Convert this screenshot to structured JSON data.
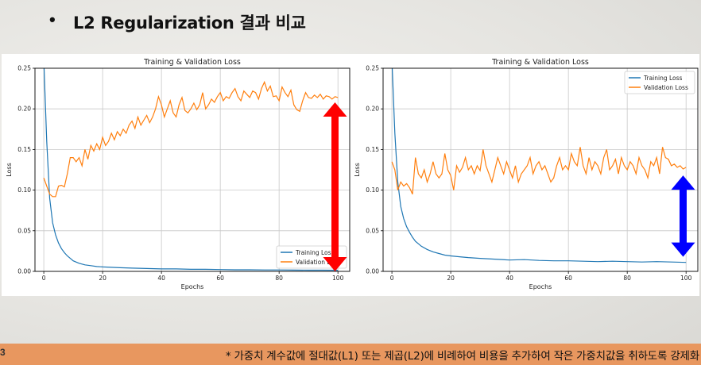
{
  "slide": {
    "bullet": "•",
    "title": "L2 Regularization 결과 비교",
    "footer_number": "3",
    "footer_note": "* 가중치 계수값에 절대값(L1) 또는 제곱(L2)에 비례하여 비용을 추가하여 작은 가중치값을 취하도록 강제화"
  },
  "colors": {
    "train": "#1f77b4",
    "val": "#ff7f0e",
    "arrow_left": "#ff0000",
    "arrow_right": "#0000ff",
    "footer_bg": "#e8975f"
  },
  "chart_data": [
    {
      "type": "line",
      "title": "Training & Validation Loss",
      "xlabel": "Epochs",
      "ylabel": "Loss",
      "xlim": [
        -3,
        104
      ],
      "ylim": [
        0,
        0.25
      ],
      "xticks": [
        "0",
        "20",
        "40",
        "60",
        "80",
        "100"
      ],
      "yticks": [
        "0.00",
        "0.05",
        "0.10",
        "0.15",
        "0.20",
        "0.25"
      ],
      "grid": true,
      "legend": "bottom-right",
      "arrow": {
        "color": "arrow_left",
        "y_top": 0.208,
        "y_bottom": 0.0,
        "x": 99
      },
      "series": [
        {
          "name": "Training Loss",
          "color": "train",
          "points": [
            [
              0,
              0.26
            ],
            [
              1,
              0.16
            ],
            [
              2,
              0.09
            ],
            [
              3,
              0.06
            ],
            [
              4,
              0.045
            ],
            [
              5,
              0.035
            ],
            [
              6,
              0.028
            ],
            [
              7,
              0.023
            ],
            [
              8,
              0.019
            ],
            [
              9,
              0.016
            ],
            [
              10,
              0.013
            ],
            [
              12,
              0.01
            ],
            [
              14,
              0.008
            ],
            [
              16,
              0.007
            ],
            [
              18,
              0.006
            ],
            [
              20,
              0.0055
            ],
            [
              23,
              0.005
            ],
            [
              26,
              0.0045
            ],
            [
              30,
              0.004
            ],
            [
              35,
              0.0035
            ],
            [
              40,
              0.003
            ],
            [
              45,
              0.003
            ],
            [
              50,
              0.0025
            ],
            [
              55,
              0.0025
            ],
            [
              60,
              0.0022
            ],
            [
              65,
              0.002
            ],
            [
              70,
              0.002
            ],
            [
              75,
              0.0018
            ],
            [
              80,
              0.0018
            ],
            [
              85,
              0.0016
            ],
            [
              90,
              0.0015
            ],
            [
              95,
              0.0015
            ],
            [
              100,
              0.0014
            ]
          ]
        },
        {
          "name": "Validation Loss",
          "color": "val",
          "points": [
            [
              0,
              0.115
            ],
            [
              1,
              0.105
            ],
            [
              2,
              0.095
            ],
            [
              3,
              0.092
            ],
            [
              4,
              0.092
            ],
            [
              5,
              0.105
            ],
            [
              6,
              0.106
            ],
            [
              7,
              0.104
            ],
            [
              8,
              0.12
            ],
            [
              9,
              0.14
            ],
            [
              10,
              0.14
            ],
            [
              11,
              0.135
            ],
            [
              12,
              0.14
            ],
            [
              13,
              0.13
            ],
            [
              14,
              0.15
            ],
            [
              15,
              0.138
            ],
            [
              16,
              0.155
            ],
            [
              17,
              0.148
            ],
            [
              18,
              0.157
            ],
            [
              19,
              0.15
            ],
            [
              20,
              0.165
            ],
            [
              21,
              0.155
            ],
            [
              22,
              0.16
            ],
            [
              23,
              0.17
            ],
            [
              24,
              0.162
            ],
            [
              25,
              0.172
            ],
            [
              26,
              0.167
            ],
            [
              27,
              0.175
            ],
            [
              28,
              0.17
            ],
            [
              29,
              0.18
            ],
            [
              30,
              0.185
            ],
            [
              31,
              0.176
            ],
            [
              32,
              0.19
            ],
            [
              33,
              0.18
            ],
            [
              34,
              0.186
            ],
            [
              35,
              0.192
            ],
            [
              36,
              0.183
            ],
            [
              37,
              0.19
            ],
            [
              38,
              0.2
            ],
            [
              39,
              0.215
            ],
            [
              40,
              0.205
            ],
            [
              41,
              0.19
            ],
            [
              42,
              0.2
            ],
            [
              43,
              0.21
            ],
            [
              44,
              0.195
            ],
            [
              45,
              0.19
            ],
            [
              46,
              0.205
            ],
            [
              47,
              0.214
            ],
            [
              48,
              0.198
            ],
            [
              49,
              0.195
            ],
            [
              50,
              0.2
            ],
            [
              51,
              0.207
            ],
            [
              52,
              0.199
            ],
            [
              53,
              0.205
            ],
            [
              54,
              0.22
            ],
            [
              55,
              0.2
            ],
            [
              56,
              0.205
            ],
            [
              57,
              0.212
            ],
            [
              58,
              0.208
            ],
            [
              59,
              0.215
            ],
            [
              60,
              0.22
            ],
            [
              61,
              0.21
            ],
            [
              62,
              0.215
            ],
            [
              63,
              0.213
            ],
            [
              64,
              0.22
            ],
            [
              65,
              0.225
            ],
            [
              66,
              0.215
            ],
            [
              67,
              0.21
            ],
            [
              68,
              0.222
            ],
            [
              69,
              0.218
            ],
            [
              70,
              0.214
            ],
            [
              71,
              0.222
            ],
            [
              72,
              0.22
            ],
            [
              73,
              0.212
            ],
            [
              74,
              0.225
            ],
            [
              75,
              0.233
            ],
            [
              76,
              0.222
            ],
            [
              77,
              0.228
            ],
            [
              78,
              0.215
            ],
            [
              79,
              0.216
            ],
            [
              80,
              0.21
            ],
            [
              81,
              0.227
            ],
            [
              82,
              0.22
            ],
            [
              83,
              0.215
            ],
            [
              84,
              0.223
            ],
            [
              85,
              0.205
            ],
            [
              86,
              0.199
            ],
            [
              87,
              0.197
            ],
            [
              88,
              0.21
            ],
            [
              89,
              0.22
            ],
            [
              90,
              0.214
            ],
            [
              91,
              0.213
            ],
            [
              92,
              0.217
            ],
            [
              93,
              0.214
            ],
            [
              94,
              0.218
            ],
            [
              95,
              0.212
            ],
            [
              96,
              0.216
            ],
            [
              97,
              0.215
            ],
            [
              98,
              0.212
            ],
            [
              99,
              0.215
            ],
            [
              100,
              0.214
            ]
          ]
        }
      ]
    },
    {
      "type": "line",
      "title": "Training & Validation Loss",
      "xlabel": "Epochs",
      "ylabel": "Loss",
      "xlim": [
        -3,
        104
      ],
      "ylim": [
        0,
        0.25
      ],
      "xticks": [
        "0",
        "20",
        "40",
        "60",
        "80",
        "100"
      ],
      "yticks": [
        "0.00",
        "0.05",
        "0.10",
        "0.15",
        "0.20",
        "0.25"
      ],
      "grid": true,
      "legend": "top-right",
      "arrow": {
        "color": "arrow_right",
        "y_top": 0.118,
        "y_bottom": 0.018,
        "x": 99
      },
      "series": [
        {
          "name": "Training Loss",
          "color": "train",
          "points": [
            [
              0,
              0.26
            ],
            [
              1,
              0.17
            ],
            [
              2,
              0.11
            ],
            [
              3,
              0.08
            ],
            [
              4,
              0.065
            ],
            [
              5,
              0.055
            ],
            [
              6,
              0.048
            ],
            [
              7,
              0.042
            ],
            [
              8,
              0.037
            ],
            [
              9,
              0.034
            ],
            [
              10,
              0.031
            ],
            [
              12,
              0.027
            ],
            [
              14,
              0.024
            ],
            [
              16,
              0.022
            ],
            [
              18,
              0.02
            ],
            [
              20,
              0.019
            ],
            [
              23,
              0.018
            ],
            [
              26,
              0.017
            ],
            [
              30,
              0.016
            ],
            [
              35,
              0.015
            ],
            [
              40,
              0.014
            ],
            [
              45,
              0.0145
            ],
            [
              50,
              0.0135
            ],
            [
              55,
              0.013
            ],
            [
              60,
              0.013
            ],
            [
              65,
              0.0125
            ],
            [
              70,
              0.012
            ],
            [
              75,
              0.0125
            ],
            [
              80,
              0.012
            ],
            [
              85,
              0.0115
            ],
            [
              90,
              0.012
            ],
            [
              95,
              0.0115
            ],
            [
              100,
              0.011
            ]
          ]
        },
        {
          "name": "Validation Loss",
          "color": "val",
          "points": [
            [
              0,
              0.135
            ],
            [
              1,
              0.125
            ],
            [
              2,
              0.1
            ],
            [
              3,
              0.11
            ],
            [
              4,
              0.105
            ],
            [
              5,
              0.108
            ],
            [
              6,
              0.103
            ],
            [
              7,
              0.095
            ],
            [
              8,
              0.14
            ],
            [
              9,
              0.12
            ],
            [
              10,
              0.115
            ],
            [
              11,
              0.125
            ],
            [
              12,
              0.11
            ],
            [
              13,
              0.12
            ],
            [
              14,
              0.135
            ],
            [
              15,
              0.12
            ],
            [
              16,
              0.115
            ],
            [
              17,
              0.12
            ],
            [
              18,
              0.145
            ],
            [
              19,
              0.125
            ],
            [
              20,
              0.118
            ],
            [
              21,
              0.1
            ],
            [
              22,
              0.13
            ],
            [
              23,
              0.122
            ],
            [
              24,
              0.128
            ],
            [
              25,
              0.14
            ],
            [
              26,
              0.125
            ],
            [
              27,
              0.13
            ],
            [
              28,
              0.12
            ],
            [
              29,
              0.13
            ],
            [
              30,
              0.124
            ],
            [
              31,
              0.15
            ],
            [
              32,
              0.13
            ],
            [
              33,
              0.12
            ],
            [
              34,
              0.11
            ],
            [
              35,
              0.125
            ],
            [
              36,
              0.14
            ],
            [
              37,
              0.13
            ],
            [
              38,
              0.12
            ],
            [
              39,
              0.135
            ],
            [
              40,
              0.125
            ],
            [
              41,
              0.115
            ],
            [
              42,
              0.13
            ],
            [
              43,
              0.11
            ],
            [
              44,
              0.12
            ],
            [
              45,
              0.125
            ],
            [
              46,
              0.13
            ],
            [
              47,
              0.14
            ],
            [
              48,
              0.12
            ],
            [
              49,
              0.13
            ],
            [
              50,
              0.135
            ],
            [
              51,
              0.125
            ],
            [
              52,
              0.13
            ],
            [
              53,
              0.12
            ],
            [
              54,
              0.11
            ],
            [
              55,
              0.115
            ],
            [
              56,
              0.13
            ],
            [
              57,
              0.14
            ],
            [
              58,
              0.125
            ],
            [
              59,
              0.13
            ],
            [
              60,
              0.125
            ],
            [
              61,
              0.145
            ],
            [
              62,
              0.135
            ],
            [
              63,
              0.13
            ],
            [
              64,
              0.153
            ],
            [
              65,
              0.13
            ],
            [
              66,
              0.12
            ],
            [
              67,
              0.14
            ],
            [
              68,
              0.125
            ],
            [
              69,
              0.135
            ],
            [
              70,
              0.13
            ],
            [
              71,
              0.12
            ],
            [
              72,
              0.14
            ],
            [
              73,
              0.15
            ],
            [
              74,
              0.125
            ],
            [
              75,
              0.13
            ],
            [
              76,
              0.138
            ],
            [
              77,
              0.12
            ],
            [
              78,
              0.14
            ],
            [
              79,
              0.13
            ],
            [
              80,
              0.125
            ],
            [
              81,
              0.135
            ],
            [
              82,
              0.13
            ],
            [
              83,
              0.12
            ],
            [
              84,
              0.14
            ],
            [
              85,
              0.13
            ],
            [
              86,
              0.125
            ],
            [
              87,
              0.115
            ],
            [
              88,
              0.135
            ],
            [
              89,
              0.13
            ],
            [
              90,
              0.14
            ],
            [
              91,
              0.12
            ],
            [
              92,
              0.153
            ],
            [
              93,
              0.14
            ],
            [
              94,
              0.138
            ],
            [
              95,
              0.13
            ],
            [
              96,
              0.132
            ],
            [
              97,
              0.128
            ],
            [
              98,
              0.13
            ],
            [
              99,
              0.126
            ],
            [
              100,
              0.128
            ]
          ]
        }
      ]
    }
  ]
}
